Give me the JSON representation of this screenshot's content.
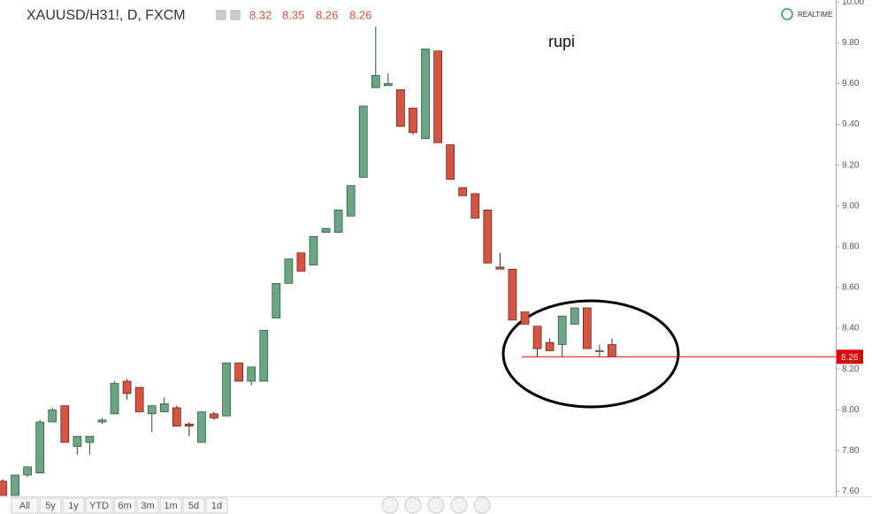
{
  "header": {
    "symbol": "XAUUSD/H31!, D, FXCM",
    "ohlc": [
      "8.32",
      "8.35",
      "8.26",
      "8.26"
    ],
    "status": "REALTIME"
  },
  "toolbar": {
    "ranges": [
      "All",
      "5y",
      "1y",
      "YTD",
      "6m",
      "3m",
      "1m",
      "5d",
      "1d"
    ]
  },
  "chart_data": {
    "type": "candlestick",
    "annotation": "rupi",
    "open": [
      7.65,
      7.58,
      7.68,
      7.69,
      7.94,
      8.02,
      7.82,
      7.84,
      7.94,
      7.98,
      8.14,
      8.11,
      7.98,
      7.99,
      8.01,
      7.93,
      7.84,
      7.98,
      7.97,
      8.23,
      8.14,
      8.14,
      8.45,
      8.62,
      8.77,
      8.71,
      8.87,
      8.87,
      8.95,
      9.14,
      9.58,
      9.59,
      9.57,
      9.48,
      9.33,
      9.76,
      9.3,
      9.09,
      9.06,
      8.98,
      8.7,
      8.69,
      8.48,
      8.41,
      8.33,
      8.32,
      8.42,
      8.5,
      8.29,
      8.32
    ],
    "high": [
      7.66,
      7.68,
      7.72,
      7.95,
      8.01,
      8.02,
      7.87,
      7.87,
      7.96,
      8.14,
      8.15,
      8.11,
      8.02,
      8.06,
      8.02,
      7.94,
      7.99,
      7.99,
      8.23,
      8.23,
      8.21,
      8.39,
      8.62,
      8.74,
      8.77,
      8.85,
      8.89,
      8.98,
      9.1,
      9.49,
      9.88,
      9.65,
      9.57,
      9.48,
      9.77,
      9.76,
      9.3,
      9.09,
      9.06,
      8.98,
      8.77,
      8.69,
      8.48,
      8.41,
      8.35,
      8.46,
      8.5,
      8.5,
      8.32,
      8.35
    ],
    "low": [
      7.58,
      7.58,
      7.67,
      7.69,
      7.94,
      7.84,
      7.78,
      7.78,
      7.93,
      7.98,
      8.05,
      7.99,
      7.89,
      7.99,
      7.92,
      7.87,
      7.84,
      7.95,
      7.97,
      8.14,
      8.12,
      8.14,
      8.45,
      8.62,
      8.68,
      8.71,
      8.87,
      8.87,
      8.95,
      9.14,
      9.58,
      9.59,
      9.39,
      9.35,
      9.33,
      9.31,
      9.13,
      9.05,
      8.94,
      8.72,
      8.69,
      8.44,
      8.42,
      8.26,
      8.29,
      8.26,
      8.42,
      8.3,
      8.26,
      8.26
    ],
    "close": [
      7.58,
      7.68,
      7.72,
      7.94,
      8.0,
      7.84,
      7.87,
      7.87,
      7.95,
      8.13,
      8.08,
      7.99,
      8.02,
      8.03,
      7.92,
      7.92,
      7.99,
      7.96,
      8.23,
      8.14,
      8.21,
      8.39,
      8.62,
      8.74,
      8.68,
      8.85,
      8.89,
      8.98,
      9.1,
      9.49,
      9.64,
      9.6,
      9.39,
      9.36,
      9.77,
      9.31,
      9.13,
      9.05,
      8.94,
      8.72,
      8.69,
      8.44,
      8.42,
      8.3,
      8.29,
      8.46,
      8.5,
      8.3,
      8.29,
      8.26
    ],
    "up_color": "#6ba583",
    "down_color": "#d75442",
    "ylim": [
      7.58,
      10.01
    ],
    "yticks": [
      {
        "value": 7.6,
        "label": "7.60"
      },
      {
        "value": 7.8,
        "label": "7.80"
      },
      {
        "value": 8.0,
        "label": "8.00"
      },
      {
        "value": 8.2,
        "label": "8.20"
      },
      {
        "value": 8.4,
        "label": "8.40"
      },
      {
        "value": 8.6,
        "label": "8.60"
      },
      {
        "value": 8.8,
        "label": "8.80"
      },
      {
        "value": 9.0,
        "label": "9.00"
      },
      {
        "value": 9.2,
        "label": "9.20"
      },
      {
        "value": 9.4,
        "label": "9.40"
      },
      {
        "value": 9.6,
        "label": "9.60"
      },
      {
        "value": 9.8,
        "label": "9.80"
      },
      {
        "value": 10.0,
        "label": "10.00"
      }
    ],
    "last_price": {
      "value": 8.26,
      "label": "8.26"
    },
    "last_price_color": "#e00000"
  }
}
